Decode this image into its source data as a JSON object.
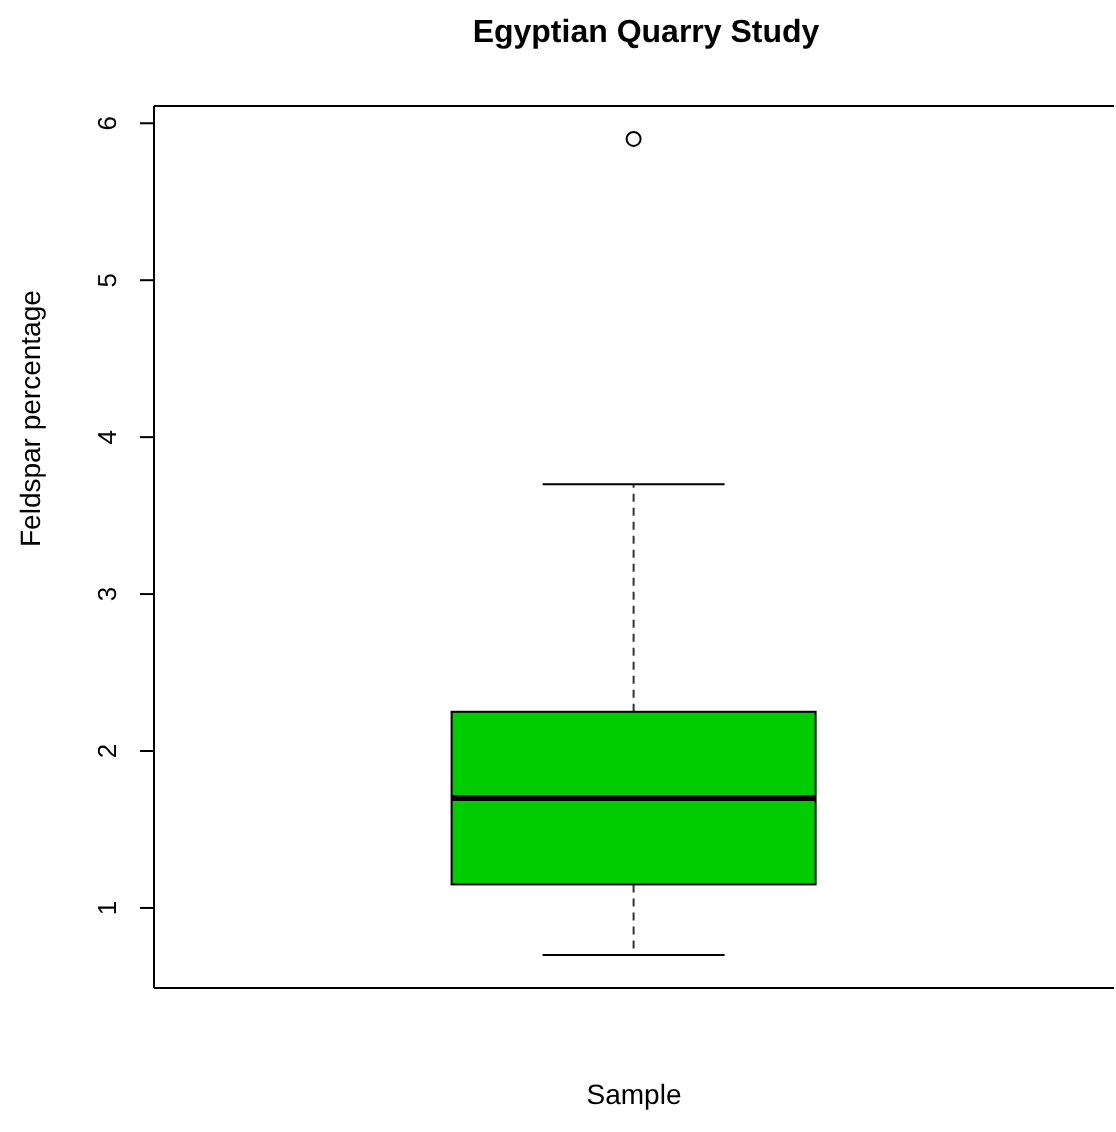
{
  "chart_data": {
    "type": "box",
    "title": "Egyptian Quarry Study",
    "xlabel": "Sample",
    "ylabel": "Feldspar  percentage",
    "categories": [
      null
    ],
    "color": "#00cc00",
    "boxes": [
      {
        "low": 0.7,
        "q1": 1.15,
        "median": 1.7,
        "q3": 2.25,
        "high": 3.7,
        "outliers": [
          5.9
        ]
      }
    ],
    "ylim": [
      0.49,
      6.11
    ],
    "yticks": [
      1,
      2,
      3,
      4,
      5,
      6
    ],
    "grid": false
  }
}
